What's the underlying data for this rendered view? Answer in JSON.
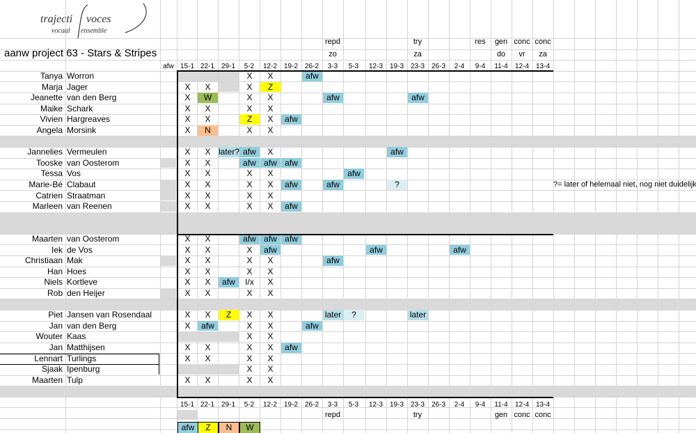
{
  "logo": {
    "word1": "trajecti",
    "word2": "voces",
    "sub1": "vocaal",
    "sub2": "ensemble"
  },
  "title": "aanw project 63 - Stars & Stripes",
  "afw_header": "afw",
  "dates": [
    "15-1",
    "22-1",
    "29-1",
    "5-2",
    "12-2",
    "19-2",
    "26-2",
    "3-3",
    "5-3",
    "12-3",
    "19-3",
    "23-3",
    "26-3",
    "2-4",
    "9-4",
    "11-4",
    "12-4",
    "13-4"
  ],
  "events_top": [
    "",
    "",
    "",
    "",
    "",
    "",
    "",
    "repd",
    "",
    "",
    "",
    "try",
    "",
    "",
    "res",
    "gen",
    "conc",
    "conc"
  ],
  "days_top": [
    "",
    "",
    "",
    "",
    "",
    "",
    "",
    "zo",
    "",
    "",
    "",
    "za",
    "",
    "",
    "",
    "do",
    "vr",
    "za"
  ],
  "events_bottom": [
    "",
    "",
    "",
    "",
    "",
    "",
    "",
    "repd",
    "",
    "",
    "",
    "try",
    "",
    "",
    "",
    "gen",
    "conc",
    "conc"
  ],
  "note": "?= later of helemaal niet, nog niet duidelijk",
  "legend": [
    {
      "label": "afw",
      "color": "#92cddc"
    },
    {
      "label": "Z",
      "color": "#ffff00"
    },
    {
      "label": "N",
      "color": "#fabf8f"
    },
    {
      "label": "W",
      "color": "#9bbb59"
    }
  ],
  "rows": [
    {
      "first": "Tanya",
      "last": "Worron",
      "afw": false,
      "cells": [
        "",
        "",
        "",
        "X",
        "X",
        "",
        "afw",
        "",
        "",
        "",
        "",
        "",
        "",
        "",
        "",
        "",
        "",
        ""
      ]
    },
    {
      "first": "Marja",
      "last": "Jager",
      "afw": false,
      "cells": [
        "X",
        "X",
        "",
        "X",
        "Z",
        "",
        "",
        "",
        "",
        "",
        "",
        "",
        "",
        "",
        "",
        "",
        "",
        ""
      ]
    },
    {
      "first": "Jeanette",
      "last": "van den Berg",
      "afw": false,
      "cells": [
        "X",
        "W",
        "",
        "X",
        "X",
        "",
        "",
        "afw",
        "",
        "",
        "",
        "afw",
        "",
        "",
        "",
        "",
        "",
        ""
      ]
    },
    {
      "first": "Maike",
      "last": "Schark",
      "afw": false,
      "cells": [
        "X",
        "X",
        "",
        "X",
        "X",
        "",
        "",
        "",
        "",
        "",
        "",
        "",
        "",
        "",
        "",
        "",
        "",
        ""
      ]
    },
    {
      "first": "Vivien",
      "last": "Hargreaves",
      "afw": false,
      "cells": [
        "X",
        "X",
        "",
        "Z",
        "X",
        "afw",
        "",
        "",
        "",
        "",
        "",
        "",
        "",
        "",
        "",
        "",
        "",
        ""
      ]
    },
    {
      "first": "Angela",
      "last": "Morsink",
      "afw": false,
      "cells": [
        "X",
        "N",
        "",
        "X",
        "X",
        "",
        "",
        "",
        "",
        "",
        "",
        "",
        "",
        "",
        "",
        "",
        "",
        ""
      ]
    },
    {
      "sep": true
    },
    {
      "first": "Jannelies",
      "last": "Vermeulen",
      "afw": false,
      "cells": [
        "X",
        "X",
        "later?",
        "afw",
        "X",
        "",
        "",
        "",
        "",
        "",
        "afw",
        "",
        "",
        "",
        "",
        "",
        "",
        ""
      ]
    },
    {
      "first": "Tooske",
      "last": "van Oosterom",
      "afw": true,
      "cells": [
        "X",
        "X",
        "",
        "afw",
        "afw",
        "afw",
        "",
        "",
        "",
        "",
        "",
        "",
        "",
        "",
        "",
        "",
        "",
        ""
      ]
    },
    {
      "first": "Tessa",
      "last": "Vos",
      "afw": false,
      "cells": [
        "X",
        "X",
        "",
        "X",
        "X",
        "",
        "",
        "",
        "afw",
        "",
        "",
        "",
        "",
        "",
        "",
        "",
        "",
        ""
      ]
    },
    {
      "first": "Marie-Bé",
      "last": "Clabaut",
      "afw": true,
      "cells": [
        "X",
        "X",
        "",
        "X",
        "X",
        "afw",
        "",
        "afw",
        "",
        "",
        "?",
        "",
        "",
        "",
        "",
        "",
        "",
        ""
      ]
    },
    {
      "first": "Catrien",
      "last": "Straatman",
      "afw": true,
      "cells": [
        "X",
        "X",
        "",
        "X",
        "X",
        "",
        "",
        "",
        "",
        "",
        "",
        "",
        "",
        "",
        "",
        "",
        "",
        ""
      ]
    },
    {
      "first": "Marleen",
      "last": "van Reenen",
      "afw": true,
      "cells": [
        "X",
        "X",
        "",
        "X",
        "X",
        "afw",
        "",
        "",
        "",
        "",
        "",
        "",
        "",
        "",
        "",
        "",
        "",
        ""
      ]
    },
    {
      "sep": true
    },
    {
      "sep": true
    },
    {
      "first": "Maarten",
      "last": "van Oosterom",
      "afw": false,
      "cells": [
        "X",
        "X",
        "",
        "afw",
        "afw",
        "afw",
        "",
        "",
        "",
        "",
        "",
        "",
        "",
        "",
        "",
        "",
        "",
        ""
      ]
    },
    {
      "first": "Iek",
      "last": "de Vos",
      "afw": false,
      "cells": [
        "X",
        "X",
        "",
        "X",
        "afw",
        "",
        "",
        "",
        "",
        "afw",
        "",
        "",
        "",
        "afw",
        "",
        "",
        "",
        ""
      ]
    },
    {
      "first": "Christiaan",
      "last": "Mak",
      "afw": true,
      "cells": [
        "X",
        "X",
        "",
        "X",
        "X",
        "",
        "",
        "afw",
        "",
        "",
        "",
        "",
        "",
        "",
        "",
        "",
        "",
        ""
      ]
    },
    {
      "first": "Han",
      "last": "Hoes",
      "afw": false,
      "cells": [
        "X",
        "X",
        "",
        "X",
        "X",
        "",
        "",
        "",
        "",
        "",
        "",
        "",
        "",
        "",
        "",
        "",
        "",
        ""
      ]
    },
    {
      "first": "Niels",
      "last": "Kortleve",
      "afw": false,
      "cells": [
        "X",
        "X",
        "afw",
        "I/x",
        "X",
        "",
        "",
        "",
        "",
        "",
        "",
        "",
        "",
        "",
        "",
        "",
        "",
        ""
      ]
    },
    {
      "first": "Rob",
      "last": "den Heijer",
      "afw": true,
      "cells": [
        "X",
        "X",
        "",
        "X",
        "X",
        "",
        "",
        "",
        "",
        "",
        "",
        "",
        "",
        "",
        "",
        "",
        "",
        ""
      ]
    },
    {
      "sep": true
    },
    {
      "first": "Piet",
      "last": "Jansen van Rosendaal",
      "afw": false,
      "cells": [
        "X",
        "X",
        "Z",
        "X",
        "X",
        "",
        "",
        "later",
        "?",
        "",
        "",
        "later",
        "",
        "",
        "",
        "",
        "",
        ""
      ]
    },
    {
      "first": "Jan",
      "last": "van den Berg",
      "afw": false,
      "cells": [
        "X",
        "afw",
        "",
        "X",
        "X",
        "",
        "afw",
        "",
        "",
        "",
        "",
        "",
        "",
        "",
        "",
        "",
        "",
        ""
      ]
    },
    {
      "first": "Wouter",
      "last": "Kaas",
      "afw": false,
      "cells": [
        "",
        "",
        "",
        "X",
        "X",
        "",
        "",
        "",
        "",
        "",
        "",
        "",
        "",
        "",
        "",
        "",
        "",
        ""
      ]
    },
    {
      "first": "Jan",
      "last": "Matthijsen",
      "afw": false,
      "cells": [
        "X",
        "X",
        "",
        "X",
        "X",
        "afw",
        "",
        "",
        "",
        "",
        "",
        "",
        "",
        "",
        "",
        "",
        "",
        ""
      ]
    },
    {
      "first": "Lennart",
      "last": "Turlings",
      "afw": false,
      "cells": [
        "X",
        "X",
        "",
        "X",
        "X",
        "",
        "",
        "",
        "",
        "",
        "",
        "",
        "",
        "",
        "",
        "",
        "",
        ""
      ]
    },
    {
      "first": "Sjaak",
      "last": "Ipenburg",
      "afw": false,
      "cells": [
        "",
        "",
        "",
        "X",
        "X",
        "",
        "",
        "",
        "",
        "",
        "",
        "",
        "",
        "",
        "",
        "",
        "",
        ""
      ]
    },
    {
      "first": "Maarten",
      "last": "Tulp",
      "afw": false,
      "cells": [
        "X",
        "X",
        "",
        "X",
        "X",
        "",
        "",
        "",
        "",
        "",
        "",
        "",
        "",
        "",
        "",
        "",
        "",
        ""
      ]
    },
    {
      "sep": true
    }
  ]
}
